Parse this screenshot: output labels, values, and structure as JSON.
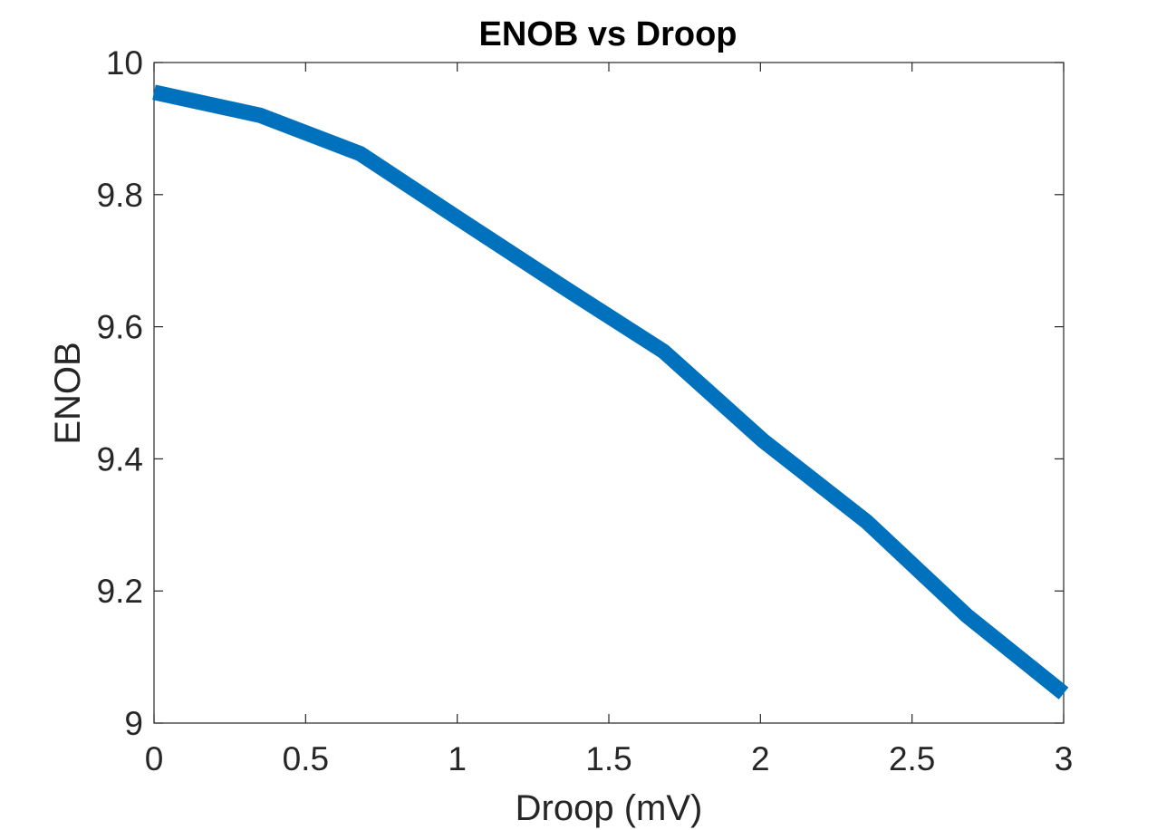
{
  "chart_data": {
    "type": "line",
    "title": "ENOB vs Droop",
    "xlabel": "Droop (mV)",
    "ylabel": "ENOB",
    "xlim": [
      0,
      3
    ],
    "ylim": [
      9,
      10
    ],
    "xticks": [
      0,
      0.5,
      1,
      1.5,
      2,
      2.5,
      3
    ],
    "xtick_labels": [
      "0",
      "0.5",
      "1",
      "1.5",
      "2",
      "2.5",
      "3"
    ],
    "yticks": [
      9,
      9.2,
      9.4,
      9.6,
      9.8,
      10
    ],
    "ytick_labels": [
      "9",
      "9.2",
      "9.4",
      "9.6",
      "9.8",
      "10"
    ],
    "grid": false,
    "series": [
      {
        "color": "#0072BD",
        "x": [
          0,
          0.35,
          0.68,
          1.0,
          1.35,
          1.68,
          2.01,
          2.35,
          2.68,
          3.0
        ],
        "y": [
          9.955,
          9.92,
          9.862,
          9.765,
          9.66,
          9.563,
          9.427,
          9.305,
          9.163,
          9.045
        ]
      }
    ]
  }
}
